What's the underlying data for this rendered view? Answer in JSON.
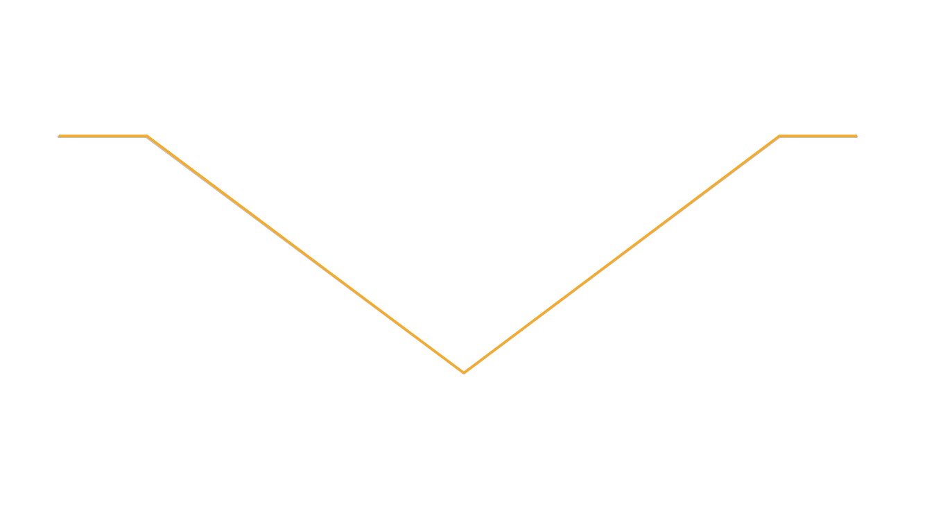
{
  "graphic": {
    "icon": "chevron-down-icon",
    "stroke_color": "#F5AA2A",
    "shadow_color": "#5A4A3A",
    "background": "#FFFFFF"
  }
}
